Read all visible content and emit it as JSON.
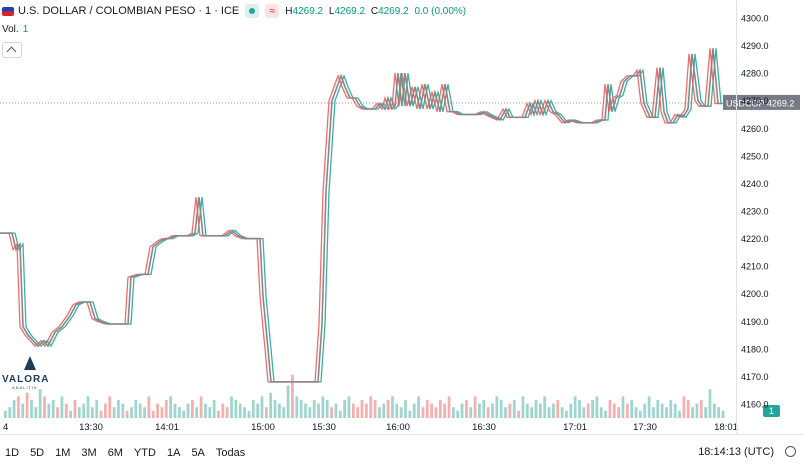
{
  "header": {
    "title": "U.S. DOLLAR / COLOMBIAN PESO · 1 · ICE",
    "pill_symbol": "≈",
    "ohlc": [
      {
        "k": "H",
        "v": "4269.2"
      },
      {
        "k": "L",
        "v": "4269.2"
      },
      {
        "k": "C",
        "v": "4269.2"
      }
    ],
    "change": "0.0 (0.00%)"
  },
  "volume": {
    "label": "Vol.",
    "value": "1"
  },
  "price_label": {
    "ticker": "USDCOP",
    "price": "4269.2"
  },
  "volume_badge": "1",
  "logo": {
    "name": "VALORA",
    "sub": "ANALITIK"
  },
  "ranges": [
    "1D",
    "5D",
    "1M",
    "3M",
    "6M",
    "YTD",
    "1A",
    "5A",
    "Todas"
  ],
  "timezone": "18:14:13 (UTC)",
  "colors": {
    "up": "#26a69a",
    "down": "#ef5350",
    "line": "#888888"
  },
  "chart_data": {
    "type": "line",
    "title": "U.S. DOLLAR / COLOMBIAN PESO · 1 · ICE",
    "xlabel": "",
    "ylabel": "",
    "ylim": [
      4155,
      4302
    ],
    "y_ticks": [
      4160,
      4170,
      4180,
      4190,
      4200,
      4210,
      4220,
      4230,
      4240,
      4250,
      4260,
      4270,
      4280,
      4290,
      4300
    ],
    "x_ticks": [
      "4",
      "13:30",
      "14:01",
      "15:00",
      "15:30",
      "16:00",
      "16:30",
      "17:01",
      "17:30",
      "18:01"
    ],
    "current_price": 4269.2,
    "series": [
      {
        "name": "USDCOP",
        "values": [
          [
            0,
            4222
          ],
          [
            12,
            4222
          ],
          [
            16,
            4216
          ],
          [
            20,
            4218
          ],
          [
            23,
            4188
          ],
          [
            28,
            4185
          ],
          [
            33,
            4183
          ],
          [
            38,
            4181
          ],
          [
            44,
            4183
          ],
          [
            48,
            4181
          ],
          [
            55,
            4186
          ],
          [
            62,
            4188
          ],
          [
            70,
            4192
          ],
          [
            76,
            4196
          ],
          [
            82,
            4197
          ],
          [
            90,
            4197
          ],
          [
            95,
            4191
          ],
          [
            100,
            4190
          ],
          [
            108,
            4189
          ],
          [
            115,
            4189
          ],
          [
            122,
            4189
          ],
          [
            128,
            4189
          ],
          [
            131,
            4206
          ],
          [
            140,
            4207
          ],
          [
            148,
            4207
          ],
          [
            153,
            4217
          ],
          [
            160,
            4219
          ],
          [
            165,
            4220
          ],
          [
            170,
            4220
          ],
          [
            175,
            4221
          ],
          [
            180,
            4221
          ],
          [
            185,
            4221
          ],
          [
            190,
            4221
          ],
          [
            195,
            4222
          ],
          [
            199,
            4235
          ],
          [
            203,
            4221
          ],
          [
            208,
            4221
          ],
          [
            215,
            4221
          ],
          [
            220,
            4221
          ],
          [
            225,
            4221
          ],
          [
            232,
            4223
          ],
          [
            238,
            4221
          ],
          [
            245,
            4220
          ],
          [
            252,
            4220
          ],
          [
            258,
            4220
          ],
          [
            260,
            4220
          ],
          [
            263,
            4199
          ],
          [
            268,
            4180
          ],
          [
            271,
            4168
          ],
          [
            280,
            4168
          ],
          [
            290,
            4168
          ],
          [
            300,
            4168
          ],
          [
            310,
            4168
          ],
          [
            318,
            4168
          ],
          [
            322,
            4189
          ],
          [
            326,
            4237
          ],
          [
            332,
            4270
          ],
          [
            337,
            4275
          ],
          [
            341,
            4279
          ],
          [
            345,
            4275
          ],
          [
            350,
            4271
          ],
          [
            355,
            4271
          ],
          [
            360,
            4268
          ],
          [
            365,
            4267
          ],
          [
            370,
            4267
          ],
          [
            375,
            4267
          ],
          [
            380,
            4269
          ],
          [
            385,
            4267
          ],
          [
            388,
            4271
          ],
          [
            392,
            4267
          ],
          [
            395,
            4268
          ],
          [
            398,
            4280
          ],
          [
            402,
            4268
          ],
          [
            405,
            4280
          ],
          [
            410,
            4268
          ],
          [
            415,
            4275
          ],
          [
            420,
            4267
          ],
          [
            425,
            4276
          ],
          [
            430,
            4267
          ],
          [
            435,
            4273
          ],
          [
            440,
            4266
          ],
          [
            445,
            4276
          ],
          [
            450,
            4266
          ],
          [
            455,
            4266
          ],
          [
            460,
            4265
          ],
          [
            466,
            4265
          ],
          [
            472,
            4265
          ],
          [
            478,
            4265
          ],
          [
            484,
            4266
          ],
          [
            488,
            4265
          ],
          [
            494,
            4264
          ],
          [
            500,
            4263
          ],
          [
            506,
            4267
          ],
          [
            510,
            4264
          ],
          [
            515,
            4264
          ],
          [
            520,
            4264
          ],
          [
            525,
            4264
          ],
          [
            530,
            4269
          ],
          [
            534,
            4265
          ],
          [
            538,
            4270
          ],
          [
            543,
            4265
          ],
          [
            548,
            4270
          ],
          [
            553,
            4266
          ],
          [
            558,
            4265
          ],
          [
            565,
            4262
          ],
          [
            572,
            4263
          ],
          [
            580,
            4262
          ],
          [
            587,
            4262
          ],
          [
            594,
            4262
          ],
          [
            600,
            4263
          ],
          [
            605,
            4263
          ],
          [
            608,
            4276
          ],
          [
            612,
            4266
          ],
          [
            616,
            4271
          ],
          [
            620,
            4272
          ],
          [
            624,
            4277
          ],
          [
            630,
            4279
          ],
          [
            636,
            4279
          ],
          [
            640,
            4281
          ],
          [
            644,
            4269
          ],
          [
            650,
            4264
          ],
          [
            655,
            4264
          ],
          [
            660,
            4282
          ],
          [
            664,
            4266
          ],
          [
            668,
            4262
          ],
          [
            673,
            4262
          ],
          [
            678,
            4265
          ],
          [
            683,
            4264
          ],
          [
            688,
            4267
          ],
          [
            692,
            4287
          ],
          [
            698,
            4270
          ],
          [
            702,
            4268
          ],
          [
            708,
            4268
          ],
          [
            713,
            4289
          ],
          [
            718,
            4269
          ],
          [
            722,
            4269
          ]
        ]
      }
    ],
    "volume": [
      2,
      3,
      5,
      6,
      4,
      7,
      5,
      3,
      8,
      6,
      4,
      5,
      3,
      6,
      4,
      2,
      5,
      3,
      4,
      6,
      3,
      5,
      2,
      4,
      6,
      3,
      5,
      4,
      2,
      3,
      5,
      4,
      3,
      6,
      2,
      4,
      3,
      5,
      6,
      4,
      3,
      2,
      4,
      5,
      3,
      6,
      4,
      3,
      5,
      2,
      4,
      3,
      6,
      5,
      4,
      3,
      2,
      5,
      4,
      6,
      3,
      7,
      5,
      4,
      3,
      9,
      12,
      6,
      5,
      4,
      3,
      5,
      4,
      6,
      5,
      3,
      4,
      2,
      5,
      6,
      4,
      3,
      5,
      4,
      6,
      5,
      3,
      4,
      5,
      6,
      4,
      3,
      5,
      2,
      4,
      6,
      3,
      5,
      4,
      3,
      5,
      4,
      6,
      3,
      2,
      4,
      5,
      3,
      6,
      4,
      5,
      3,
      4,
      6,
      5,
      3,
      4,
      5,
      2,
      6,
      4,
      3,
      5,
      4,
      6,
      3,
      4,
      5,
      3,
      2,
      4,
      6,
      5,
      3,
      4,
      5,
      6,
      3,
      2,
      5,
      4,
      3,
      6,
      4,
      5,
      3,
      2,
      4,
      6,
      3,
      5,
      4,
      3,
      5,
      4,
      2,
      6,
      5,
      3,
      4,
      5,
      3,
      8,
      4,
      3,
      2
    ]
  }
}
